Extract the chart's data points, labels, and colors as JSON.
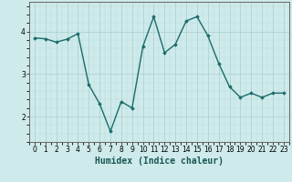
{
  "x": [
    0,
    1,
    2,
    3,
    4,
    5,
    6,
    7,
    8,
    9,
    10,
    11,
    12,
    13,
    14,
    15,
    16,
    17,
    18,
    19,
    20,
    21,
    22,
    23
  ],
  "y": [
    3.85,
    3.83,
    3.75,
    3.82,
    3.95,
    2.75,
    2.3,
    1.65,
    2.35,
    2.2,
    3.65,
    4.35,
    3.5,
    3.7,
    4.25,
    4.35,
    3.9,
    3.25,
    2.7,
    2.45,
    2.55,
    2.45,
    2.55,
    2.55
  ],
  "line_color": "#1a6b6b",
  "marker": "D",
  "marker_size": 1.8,
  "line_width": 1.0,
  "xlabel": "Humidex (Indice chaleur)",
  "xlabel_fontsize": 7,
  "xlim": [
    -0.5,
    23.5
  ],
  "ylim": [
    1.4,
    4.7
  ],
  "yticks": [
    2,
    3,
    4
  ],
  "xticks": [
    0,
    1,
    2,
    3,
    4,
    5,
    6,
    7,
    8,
    9,
    10,
    11,
    12,
    13,
    14,
    15,
    16,
    17,
    18,
    19,
    20,
    21,
    22,
    23
  ],
  "background_color": "#ceeaea",
  "grid_color_major": "#aacece",
  "grid_color_minor": "#bedddd",
  "tick_fontsize": 5.5,
  "fig_bg": "#ceeaea",
  "spine_color": "#666666"
}
